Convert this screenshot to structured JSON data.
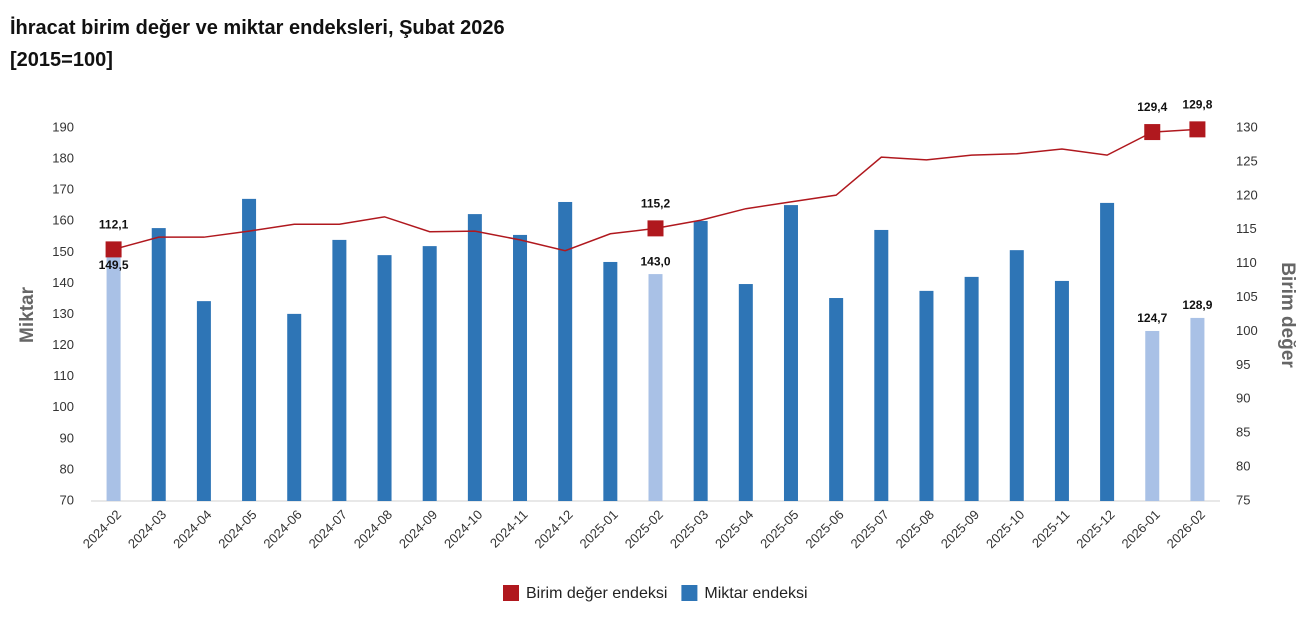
{
  "chart_data": {
    "type": "bar-line",
    "title": "İhracat birim değer ve miktar endeksleri, Şubat 2026",
    "subtitle": "[2015=100]",
    "y_label": "Miktar",
    "y2_label": "Birim değer",
    "categories": [
      "2024-02",
      "2024-03",
      "2024-04",
      "2024-05",
      "2024-06",
      "2024-07",
      "2024-08",
      "2024-09",
      "2024-10",
      "2024-11",
      "2024-12",
      "2025-01",
      "2025-02",
      "2025-03",
      "2025-04",
      "2025-05",
      "2025-06",
      "2025-07",
      "2025-08",
      "2025-09",
      "2025-10",
      "2025-11",
      "2025-12",
      "2026-01",
      "2026-02"
    ],
    "series": [
      {
        "name": "Birim değer endeksi",
        "type": "line",
        "axis": "y2",
        "color": "#b0181e",
        "values": [
          112.1,
          113.9,
          113.9,
          114.8,
          115.8,
          115.8,
          116.9,
          114.7,
          114.8,
          113.5,
          111.9,
          114.4,
          115.2,
          116.4,
          118.1,
          119.1,
          120.1,
          125.7,
          125.3,
          126.0,
          126.2,
          126.9,
          126.0,
          129.4,
          129.8
        ],
        "value_labels": [
          "112,1",
          null,
          null,
          null,
          null,
          null,
          null,
          null,
          null,
          null,
          null,
          null,
          "115,2",
          null,
          null,
          null,
          null,
          null,
          null,
          null,
          null,
          null,
          null,
          "129,4",
          "129,8"
        ]
      },
      {
        "name": "Miktar endeksi",
        "type": "bar",
        "axis": "y",
        "color": "#2e75b6",
        "highlight_color": "#a9c1e6",
        "values": [
          149.5,
          157.8,
          134.3,
          167.2,
          130.2,
          154.0,
          149.1,
          152.0,
          162.3,
          155.6,
          166.2,
          146.9,
          143.0,
          160.1,
          139.8,
          165.2,
          135.3,
          157.2,
          137.6,
          142.1,
          150.7,
          140.8,
          165.9,
          124.7,
          128.9
        ],
        "value_labels": [
          "149,5",
          null,
          null,
          null,
          null,
          null,
          null,
          null,
          null,
          null,
          null,
          null,
          "143,0",
          null,
          null,
          null,
          null,
          null,
          null,
          null,
          null,
          null,
          null,
          "124,7",
          "128,9"
        ]
      }
    ],
    "ylim": [
      70,
      190
    ],
    "yticks": [
      70,
      80,
      90,
      100,
      110,
      120,
      130,
      140,
      150,
      160,
      170,
      180,
      190
    ],
    "y2lim": [
      75,
      130
    ],
    "y2ticks": [
      75,
      80,
      85,
      90,
      95,
      100,
      105,
      110,
      115,
      120,
      125,
      130
    ],
    "grid": false,
    "legend": "bottom"
  }
}
